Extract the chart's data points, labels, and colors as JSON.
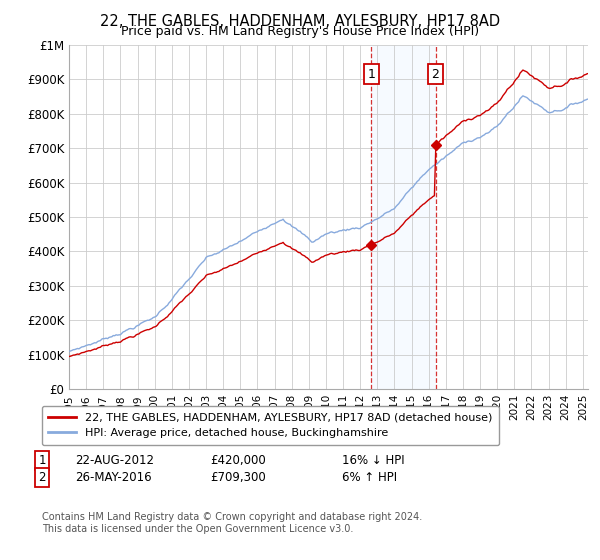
{
  "title1": "22, THE GABLES, HADDENHAM, AYLESBURY, HP17 8AD",
  "title2": "Price paid vs. HM Land Registry's House Price Index (HPI)",
  "ylabel_ticks": [
    "£0",
    "£100K",
    "£200K",
    "£300K",
    "£400K",
    "£500K",
    "£600K",
    "£700K",
    "£800K",
    "£900K",
    "£1M"
  ],
  "ytick_values": [
    0,
    100000,
    200000,
    300000,
    400000,
    500000,
    600000,
    700000,
    800000,
    900000,
    1000000
  ],
  "ylim": [
    0,
    1000000
  ],
  "xlim_start": 1995.3,
  "xlim_end": 2025.3,
  "purchase1_x": 2012.64,
  "purchase1_y": 420000,
  "purchase2_x": 2016.4,
  "purchase2_y": 709300,
  "line_color_property": "#cc0000",
  "line_color_hpi": "#88aadd",
  "legend_entry1": "22, THE GABLES, HADDENHAM, AYLESBURY, HP17 8AD (detached house)",
  "legend_entry2": "HPI: Average price, detached house, Buckinghamshire",
  "annotation1_date": "22-AUG-2012",
  "annotation1_price": "£420,000",
  "annotation1_hpi": "16% ↓ HPI",
  "annotation2_date": "26-MAY-2016",
  "annotation2_price": "£709,300",
  "annotation2_hpi": "6% ↑ HPI",
  "footer": "Contains HM Land Registry data © Crown copyright and database right 2024.\nThis data is licensed under the Open Government Licence v3.0.",
  "background_color": "#ffffff",
  "plot_bg_color": "#ffffff",
  "grid_color": "#cccccc",
  "shade_color": "#ddeeff"
}
